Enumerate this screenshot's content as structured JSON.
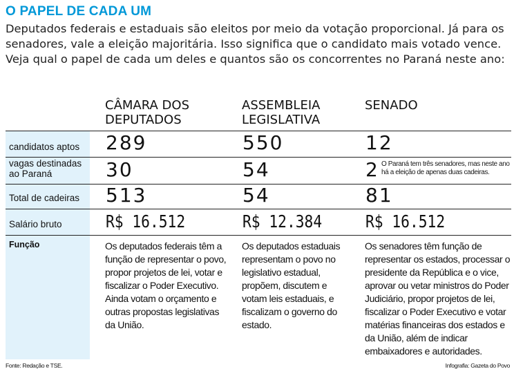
{
  "title": "O PAPEL DE CADA UM",
  "intro": "Deputados federais e estaduais são eleitos por meio da votação proporcional. Já para os senadores, vale a eleição majoritária. Isso significa que o candidato mais votado vence. Veja qual o papel de cada um deles e quantos são os concorrentes no Paraná neste ano:",
  "colors": {
    "title": "#0098d8",
    "label_column": "#e1f2fb"
  },
  "columns": [
    "CÂMARA DOS DEPUTADOS",
    "ASSEMBLEIA LEGISLATIVA",
    "SENADO"
  ],
  "rows": [
    {
      "label": "candidatos aptos",
      "values": [
        "289",
        "550",
        "12"
      ]
    },
    {
      "label": "vagas destinadas ao Paraná",
      "values": [
        "30",
        "54",
        "2"
      ],
      "note": "O Paraná tem três senadores, mas neste ano há a eleição de apenas duas cadeiras."
    },
    {
      "label": "Total de cadeiras",
      "values": [
        "513",
        "54",
        "81"
      ]
    },
    {
      "label": "Salário bruto",
      "values": [
        "R$ 16.512",
        "R$ 12.384",
        "R$ 16.512"
      ]
    },
    {
      "label": "Função",
      "values": [
        "Os deputados federais têm a função de representar o povo, propor projetos de lei, votar e fiscalizar o Poder Executivo. Ainda votam o orçamento e outras propostas legislativas da União.",
        "Os deputados estaduais representam o povo no legislativo estadual, propõem, discutem e votam leis estaduais, e fiscalizam o governo do estado.",
        "Os senadores têm função de representar os estados, processar o presidente da República e o vice, aprovar ou vetar ministros do Poder Judiciário, propor projetos de lei, fiscalizar o Poder Executivo e votar matérias financeiras dos estados e da União, além de indicar embaixadores e autoridades."
      ]
    }
  ],
  "footer": {
    "source": "Fonte: Redação e TSE.",
    "credit": "Infografia: Gazeta do Povo"
  }
}
